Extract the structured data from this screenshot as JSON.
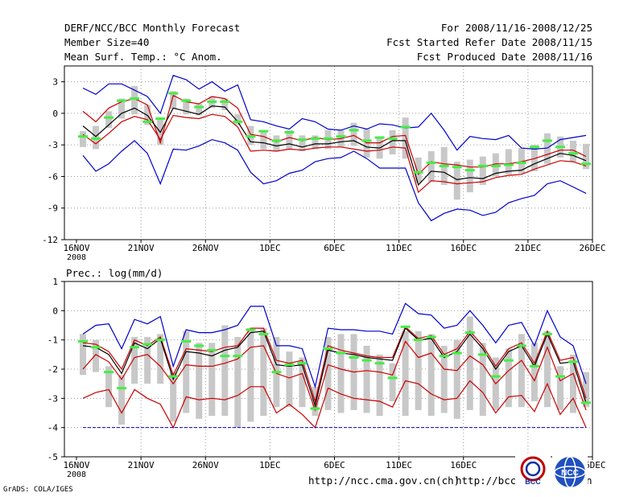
{
  "header": {
    "title": "DERF/NCC/BCC Monthly Forecast",
    "member_size": "Member Size=40",
    "variable": "Mean Surf. Temp.: °C Anom.",
    "period": "For 2008/11/16-2008/12/25",
    "started": "Fcst Started Refer Date 2008/11/15",
    "produced": "Fcst Produced Date 2008/11/16"
  },
  "footer": {
    "url1": "http://ncc.cma.gov.cn(ch)",
    "url2": "http://bcc.c",
    "url_tail": "n",
    "grads": "GrADS: COLA/IGES",
    "logo_bcc": "BCC",
    "logo_ncc": "NCC"
  },
  "colors": {
    "blue": "#0000cc",
    "red": "#cc0000",
    "black": "#000000",
    "bar": "#c8c8c8",
    "green": "#44ee44",
    "grid": "#999999"
  },
  "chart_data": [
    {
      "type": "line",
      "title": "",
      "ylabel": "Mean Surf. Temp.: °C Anom.",
      "ylim": [
        -12,
        4.5
      ],
      "yticks": [
        3,
        0,
        -3,
        -6,
        -9,
        -12
      ],
      "xticks": [
        "16NOV\n2008",
        "21NOV",
        "26NOV",
        "1DEC",
        "6DEC",
        "11DEC",
        "16DEC",
        "21DEC",
        "26DEC"
      ],
      "days": 40,
      "series": [
        {
          "name": "max",
          "color": "blue",
          "values": [
            2.4,
            1.8,
            2.8,
            2.8,
            2.2,
            1.6,
            0,
            3.6,
            3.2,
            2.3,
            3,
            2.1,
            2.7,
            -0.6,
            -0.8,
            -1.2,
            -1.5,
            -0.5,
            -0.8,
            -1.5,
            -1.6,
            -1.2,
            -1.5,
            -1,
            -1.1,
            -1.4,
            -1.3,
            0,
            -1.6,
            -3.5,
            -2.2,
            -2.4,
            -2.5,
            -2.1,
            -3.3,
            -3.4,
            -3.3,
            -2.5,
            -2.3,
            -2.1
          ]
        },
        {
          "name": "upper",
          "color": "red",
          "values": [
            0.2,
            -0.8,
            0.5,
            1.1,
            1.4,
            0.8,
            -2.8,
            1.7,
            1.1,
            0.9,
            1.6,
            1.4,
            0.5,
            -2,
            -2.2,
            -2.7,
            -2.3,
            -2.6,
            -2.3,
            -2.5,
            -2.4,
            -2.1,
            -2.8,
            -2.8,
            -2.2,
            -2.1,
            -5.8,
            -4.6,
            -4.8,
            -4.9,
            -5.1,
            -5.1,
            -4.8,
            -4.8,
            -4.6,
            -4.3,
            -3.9,
            -3.5,
            -3.5,
            -4.1
          ]
        },
        {
          "name": "mean",
          "color": "black",
          "values": [
            -1.2,
            -2.2,
            -1.1,
            0,
            0.5,
            -0.2,
            -1.8,
            0.5,
            0.2,
            -0.1,
            0.7,
            0.6,
            -0.8,
            -2.7,
            -2.8,
            -3.1,
            -2.9,
            -3.2,
            -2.9,
            -2.9,
            -2.7,
            -2.6,
            -3.2,
            -3.3,
            -2.6,
            -2.6,
            -6.8,
            -5.5,
            -5.6,
            -6.3,
            -6.1,
            -6.2,
            -5.7,
            -5.5,
            -5.4,
            -4.8,
            -4.3,
            -3.8,
            -4,
            -4.5
          ]
        },
        {
          "name": "lower",
          "color": "red",
          "values": [
            -2,
            -2.9,
            -1.9,
            -0.8,
            -0.3,
            -0.6,
            -2.5,
            -0.2,
            -0.4,
            -0.5,
            -0.1,
            -0.3,
            -1.3,
            -3.6,
            -3.5,
            -3.6,
            -3.4,
            -3.5,
            -3.3,
            -3.2,
            -3.2,
            -3.4,
            -3.6,
            -3.5,
            -3.2,
            -3.3,
            -7.5,
            -6.4,
            -6.5,
            -6.7,
            -6.6,
            -6.5,
            -6.1,
            -5.9,
            -5.8,
            -5.3,
            -4.9,
            -4.5,
            -4.6,
            -5
          ]
        },
        {
          "name": "min",
          "color": "blue",
          "values": [
            -4,
            -5.5,
            -4.8,
            -3.6,
            -2.6,
            -3.8,
            -6.7,
            -3.4,
            -3.5,
            -3.1,
            -2.5,
            -2.8,
            -3.5,
            -5.6,
            -6.7,
            -6.4,
            -5.7,
            -5.4,
            -4.6,
            -4.3,
            -4.2,
            -3.6,
            -4.3,
            -5.2,
            -5.2,
            -5.2,
            -8.5,
            -10.2,
            -9.5,
            -9.1,
            -9.2,
            -9.7,
            -9.4,
            -8.5,
            -8.1,
            -7.8,
            -6.7,
            -6.4,
            -7,
            -7.6
          ]
        }
      ],
      "bars": [
        [
          -3.2,
          -1.7
        ],
        [
          -3.4,
          -1.2
        ],
        [
          -1.4,
          0.2
        ],
        [
          -0.5,
          1.4
        ],
        [
          -0.1,
          2.6
        ],
        [
          -1.1,
          0.8
        ],
        [
          -3,
          -0.4
        ],
        [
          0.4,
          2.1
        ],
        [
          -0.1,
          1.4
        ],
        [
          -0.2,
          0.9
        ],
        [
          0.5,
          1.6
        ],
        [
          0.3,
          1.4
        ],
        [
          -1.1,
          -0.1
        ],
        [
          -3,
          -1.2
        ],
        [
          -3.4,
          -1.8
        ],
        [
          -3.6,
          -2.1
        ],
        [
          -3.4,
          -1.6
        ],
        [
          -3.6,
          -2.1
        ],
        [
          -3.4,
          -2.1
        ],
        [
          -3.4,
          -1.6
        ],
        [
          -3.2,
          -1.6
        ],
        [
          -3.1,
          -0.9
        ],
        [
          -4.2,
          -1.5
        ],
        [
          -4.3,
          -2.2
        ],
        [
          -3.9,
          -1.6
        ],
        [
          -4.3,
          -0.4
        ],
        [
          -6.6,
          -4.2
        ],
        [
          -6.5,
          -3.6
        ],
        [
          -6.8,
          -3.2
        ],
        [
          -8.2,
          -4.6
        ],
        [
          -7.5,
          -4.4
        ],
        [
          -6.8,
          -4.1
        ],
        [
          -6,
          -3.8
        ],
        [
          -5.8,
          -3.4
        ],
        [
          -5.7,
          -3.3
        ],
        [
          -5.5,
          -3
        ],
        [
          -4.8,
          -1.9
        ],
        [
          -4.2,
          -2.2
        ],
        [
          -4.6,
          -2.6
        ],
        [
          -5.3,
          -2.9
        ]
      ],
      "green_marks": [
        -2.2,
        -2.4,
        -0.4,
        1.2,
        1.4,
        -0.8,
        -0.5,
        1.9,
        1.2,
        0.6,
        1.1,
        1.1,
        -0.8,
        -2.2,
        -1.7,
        -2.6,
        -1.8,
        -2.5,
        -2.4,
        -2.4,
        -2.2,
        -1.6,
        -2.6,
        -2.3,
        -2.4,
        -1.3,
        -5.6,
        -4.7,
        -5.0,
        -5.1,
        -5.4,
        -5.0,
        -5.0,
        -4.9,
        -4.7,
        -3.2,
        -2.6,
        -3.2,
        -3.8,
        -4.8
      ]
    },
    {
      "type": "line",
      "title": "Prec.: log(mm/d)",
      "ylabel": "Prec.: log(mm/d)",
      "ylim": [
        -5,
        1
      ],
      "yticks": [
        1,
        0,
        -1,
        -2,
        -3,
        -4,
        -5
      ],
      "xticks": [
        "16NOV\n2008",
        "21NOV",
        "26NOV",
        "1DEC",
        "6DEC",
        "11DEC",
        "16DEC",
        "21DEC",
        "26DEC"
      ],
      "days": 40,
      "series": [
        {
          "name": "max",
          "color": "blue",
          "values": [
            -0.8,
            -0.5,
            -0.45,
            -1.3,
            -0.3,
            -0.45,
            -0.2,
            -1.9,
            -0.65,
            -0.75,
            -0.75,
            -0.65,
            -0.5,
            0.15,
            0.15,
            -1.2,
            -1.2,
            -1.3,
            -2.6,
            -0.6,
            -0.65,
            -0.65,
            -0.7,
            -0.7,
            -0.8,
            0.25,
            -0.1,
            -0.15,
            -0.6,
            -0.5,
            0,
            -0.5,
            -1.1,
            -0.5,
            -0.4,
            -1.2,
            0,
            -0.9,
            -1.2,
            -2.5
          ]
        },
        {
          "name": "upper",
          "color": "red",
          "values": [
            -1.1,
            -1.15,
            -1.4,
            -2.0,
            -1.0,
            -1.2,
            -0.9,
            -2.2,
            -1.3,
            -1.35,
            -1.4,
            -1.25,
            -1.2,
            -0.6,
            -0.6,
            -1.7,
            -1.8,
            -1.7,
            -3.1,
            -1.2,
            -1.35,
            -1.45,
            -1.55,
            -1.6,
            -1.6,
            -0.55,
            -0.95,
            -0.85,
            -1.5,
            -1.3,
            -0.7,
            -1.2,
            -1.9,
            -1.3,
            -1.1,
            -1.8,
            -0.7,
            -1.7,
            -1.6,
            -3.0
          ]
        },
        {
          "name": "mean",
          "color": "black",
          "values": [
            -1.2,
            -1.25,
            -1.5,
            -2.15,
            -1.1,
            -1.3,
            -0.95,
            -2.35,
            -1.4,
            -1.45,
            -1.55,
            -1.35,
            -1.25,
            -0.75,
            -0.7,
            -1.85,
            -1.9,
            -1.85,
            -3.25,
            -1.35,
            -1.45,
            -1.5,
            -1.6,
            -1.65,
            -1.7,
            -0.6,
            -1.0,
            -0.95,
            -1.6,
            -1.4,
            -0.8,
            -1.3,
            -2.0,
            -1.4,
            -1.2,
            -1.9,
            -0.8,
            -1.8,
            -1.75,
            -3.15
          ]
        },
        {
          "name": "lower",
          "color": "red",
          "values": [
            -2.0,
            -1.5,
            -1.75,
            -2.35,
            -1.6,
            -1.5,
            -1.9,
            -2.5,
            -1.85,
            -1.9,
            -1.9,
            -1.8,
            -1.65,
            -1.25,
            -1.2,
            -2.15,
            -2.3,
            -2.15,
            -3.4,
            -1.85,
            -2.0,
            -2.1,
            -2.05,
            -2.1,
            -2.2,
            -1.05,
            -1.6,
            -1.45,
            -2.0,
            -2.05,
            -1.55,
            -1.85,
            -2.5,
            -2.05,
            -1.7,
            -2.4,
            -1.25,
            -2.4,
            -2.15,
            -3.4
          ]
        },
        {
          "name": "min",
          "color": "red",
          "values": [
            -3.0,
            -2.8,
            -2.7,
            -3.5,
            -2.7,
            -3.0,
            -3.2,
            -4.0,
            -2.95,
            -3.05,
            -3.0,
            -3.05,
            -2.9,
            -2.6,
            -2.6,
            -3.5,
            -3.2,
            -3.55,
            -4.0,
            -2.65,
            -2.85,
            -3.0,
            -3.05,
            -3.1,
            -3.3,
            -2.4,
            -2.5,
            -2.85,
            -3.05,
            -3.0,
            -2.4,
            -2.8,
            -3.5,
            -2.95,
            -2.9,
            -3.45,
            -2.5,
            -3.55,
            -3.0,
            -4.0
          ]
        }
      ],
      "bars": [
        [
          -2.2,
          -0.8
        ],
        [
          -2.1,
          -1.0
        ],
        [
          -3.3,
          -1.9
        ],
        [
          -3.9,
          -2.2
        ],
        [
          -2.5,
          -0.9
        ],
        [
          -2.5,
          -0.9
        ],
        [
          -2.5,
          -0.8
        ],
        [
          -3.8,
          -2.1
        ],
        [
          -3.5,
          -0.7
        ],
        [
          -3.7,
          -1.1
        ],
        [
          -3.6,
          -1.1
        ],
        [
          -3.6,
          -0.5
        ],
        [
          -4.0,
          -0.9
        ],
        [
          -3.8,
          -0.6
        ],
        [
          -3.6,
          -0.6
        ],
        [
          -3.3,
          -0.9
        ],
        [
          -3.3,
          -1.4
        ],
        [
          -3.3,
          -1.6
        ],
        [
          -3.6,
          -2.6
        ],
        [
          -3.4,
          -0.9
        ],
        [
          -3.5,
          -0.8
        ],
        [
          -3.4,
          -0.8
        ],
        [
          -3.5,
          -1.2
        ],
        [
          -3.6,
          -1.5
        ],
        [
          -3.1,
          -1.8
        ],
        [
          -3.6,
          -0.7
        ],
        [
          -3.4,
          -0.7
        ],
        [
          -3.6,
          -0.8
        ],
        [
          -3.5,
          -1.2
        ],
        [
          -3.7,
          -1.0
        ],
        [
          -3.4,
          -0.2
        ],
        [
          -3.6,
          -1.1
        ],
        [
          -3.4,
          -1.6
        ],
        [
          -3.3,
          -1.3
        ],
        [
          -3.3,
          -0.8
        ],
        [
          -3.1,
          -1.1
        ],
        [
          -3.3,
          -0.7
        ],
        [
          -3.4,
          -1.9
        ],
        [
          -3.5,
          -1.5
        ],
        [
          -3.3,
          -2.1
        ]
      ],
      "green_marks": [
        -1.05,
        -1.25,
        -2.1,
        -2.65,
        -1.25,
        -1.15,
        -1.0,
        -2.25,
        -1.05,
        -1.2,
        -1.35,
        -1.55,
        -1.55,
        -0.65,
        -0.8,
        -2.1,
        -1.85,
        -1.8,
        -3.35,
        -1.3,
        -1.45,
        -1.6,
        -1.7,
        -1.8,
        -2.3,
        -0.55,
        -1.0,
        -0.9,
        -1.55,
        -1.45,
        -0.75,
        -1.5,
        -2.25,
        -1.7,
        -1.2,
        -1.9,
        -0.8,
        -2.25,
        -1.75,
        -3.15
      ]
    }
  ]
}
